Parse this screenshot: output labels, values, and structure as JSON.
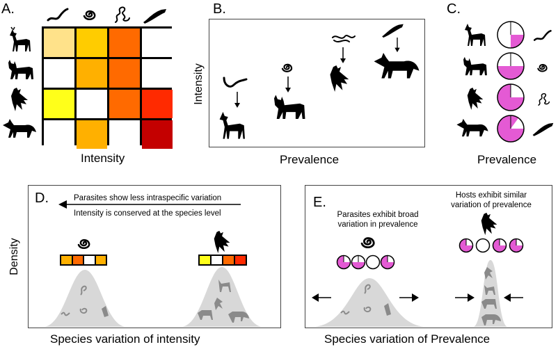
{
  "panels": {
    "a": {
      "letter": "A.",
      "caption": "Intensity"
    },
    "b": {
      "letter": "B.",
      "xlabel": "Prevalence",
      "ylabel": "Intensity"
    },
    "c": {
      "letter": "C.",
      "caption": "Prevalence"
    },
    "d": {
      "letter": "D.",
      "note_top": "Parasites show less intraspecific variation",
      "note_bottom": "Intensity is conserved at the species level",
      "ylabel": "Density",
      "caption": "Species variation of intensity"
    },
    "e": {
      "letter": "E.",
      "note_left": "Parasites exhibit broad variation in prevalence",
      "note_right": "Hosts exhibit similar variation of prevalence",
      "caption": "Species variation of Prevalence"
    }
  },
  "colors": {
    "white": "#ffffff",
    "yellow": "#ffff1a",
    "light_orange": "#ffe28a",
    "gold": "#ffcc00",
    "orange_yellow": "#ffb000",
    "dark_orange": "#ff6a00",
    "red": "#ff2a00",
    "dark_red": "#c40000",
    "magenta": "#e45ad4",
    "grey_fill": "#d8d8d8",
    "grey_icon": "#8a8a8a"
  },
  "heatmap": {
    "hosts": [
      "deer-icon",
      "lynx-icon",
      "bat-icon",
      "fox-icon"
    ],
    "parasites": [
      "leech-icon",
      "spiral-worm-icon",
      "tangled-worm-icon",
      "slug-worm-icon"
    ],
    "cells": [
      [
        "#ffe28a",
        "#ffcc00",
        "#ff6a00",
        "#ffffff"
      ],
      [
        "#ffffff",
        "#ffb000",
        "#ff6a00",
        "#ffffff"
      ],
      [
        "#ffff1a",
        "#ffffff",
        "#ff6a00",
        "#ff2a00"
      ],
      [
        "#ffffff",
        "#ffb000",
        "#ffffff",
        "#c40000"
      ]
    ]
  },
  "prevalence_pies": [
    0.25,
    0.5,
    0.75,
    0.85
  ],
  "intensity_bars": {
    "parasite": [
      "#ffb000",
      "#ff6a00",
      "#ffffff",
      "#ffb000"
    ],
    "host": [
      "#ffff1a",
      "#ffffff",
      "#ff6a00",
      "#ff2a00"
    ]
  },
  "parasite_prevalence_pies": [
    0.75,
    0.5,
    0.0,
    0.75
  ],
  "host_prevalence_pies": [
    0.75,
    0.0,
    0.75,
    0.75
  ]
}
